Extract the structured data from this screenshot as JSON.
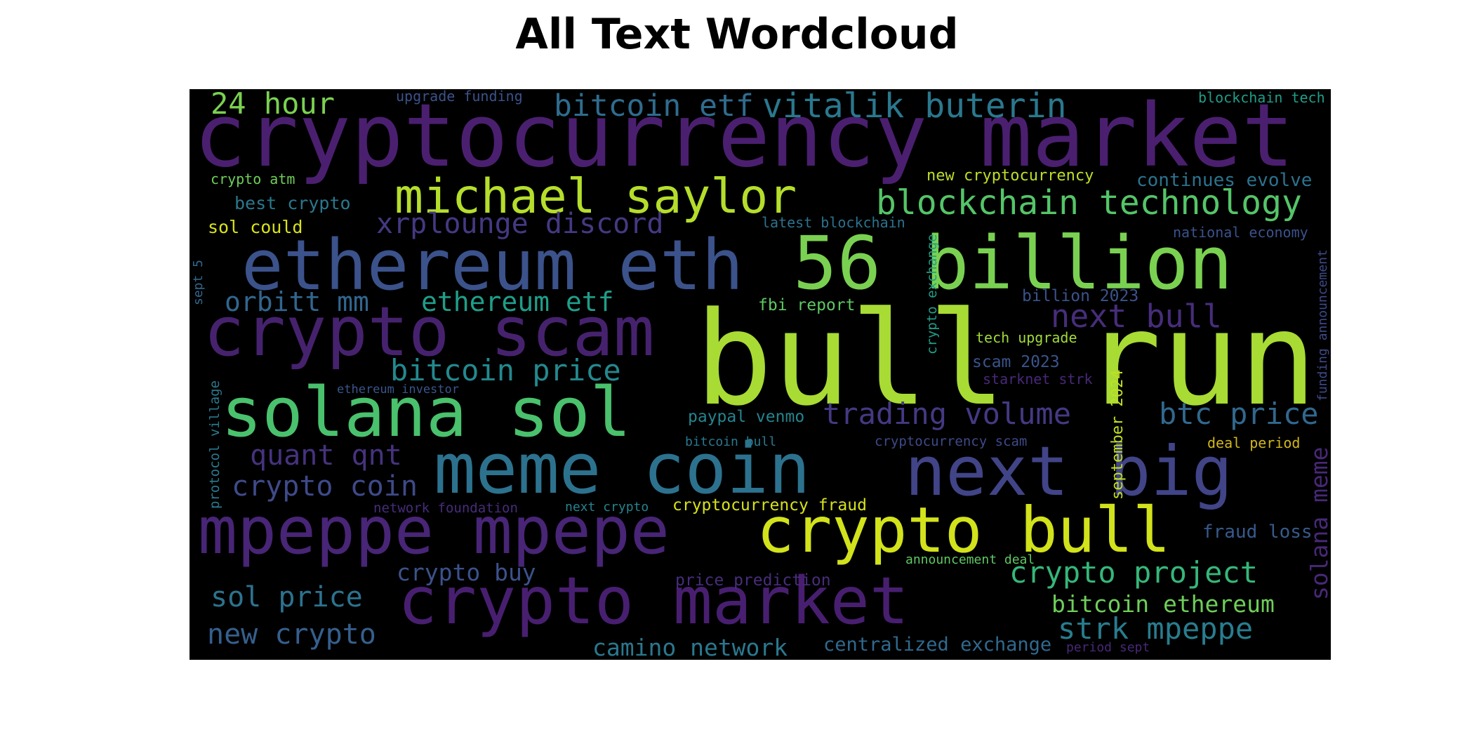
{
  "title": "All Text Wordcloud",
  "words": [
    {
      "text": "cryptocurrency market",
      "color": "#4b1f6f"
    },
    {
      "text": "bull run",
      "color": "#a8db34"
    },
    {
      "text": "56 billion",
      "color": "#7ad151"
    },
    {
      "text": "ethereum eth",
      "color": "#3b528b"
    },
    {
      "text": "crypto scam",
      "color": "#46226e"
    },
    {
      "text": "solana sol",
      "color": "#4ac16d"
    },
    {
      "text": "meme coin",
      "color": "#2c728e"
    },
    {
      "text": "next big",
      "color": "#414487"
    },
    {
      "text": "mpeppe mpepe",
      "color": "#482576"
    },
    {
      "text": "crypto bull",
      "color": "#d2e21b"
    },
    {
      "text": "crypto market",
      "color": "#481f70"
    },
    {
      "text": "michael saylor",
      "color": "#b5de2b"
    },
    {
      "text": "blockchain technology",
      "color": "#54c568"
    },
    {
      "text": "vitalik buterin",
      "color": "#2a788e"
    },
    {
      "text": "bitcoin etf",
      "color": "#2f6c8e"
    },
    {
      "text": "24 hour",
      "color": "#7ad151"
    },
    {
      "text": "xrplounge discord",
      "color": "#443983"
    },
    {
      "text": "orbitt mm",
      "color": "#31668e"
    },
    {
      "text": "ethereum etf",
      "color": "#1f9e89"
    },
    {
      "text": "next bull",
      "color": "#472d7b"
    },
    {
      "text": "bitcoin price",
      "color": "#23898e"
    },
    {
      "text": "trading volume",
      "color": "#443983"
    },
    {
      "text": "btc price",
      "color": "#31688e"
    },
    {
      "text": "quant qnt",
      "color": "#46327e"
    },
    {
      "text": "crypto coin",
      "color": "#3e4a89"
    },
    {
      "text": "crypto project",
      "color": "#35b779"
    },
    {
      "text": "crypto buy",
      "color": "#3b528b"
    },
    {
      "text": "sol price",
      "color": "#2c728e"
    },
    {
      "text": "new crypto",
      "color": "#355f8d"
    },
    {
      "text": "bitcoin ethereum",
      "color": "#6ece58"
    },
    {
      "text": "strk mpeppe",
      "color": "#287d8e"
    },
    {
      "text": "camino network",
      "color": "#2a788e"
    },
    {
      "text": "centralized exchange",
      "color": "#30698e"
    },
    {
      "text": "solana meme",
      "color": "#482878"
    },
    {
      "text": "fraud loss",
      "color": "#375a8c"
    },
    {
      "text": "best crypto",
      "color": "#2a788e"
    },
    {
      "text": "sol could",
      "color": "#d8e219"
    },
    {
      "text": "crypto atm",
      "color": "#6ece58"
    },
    {
      "text": "upgrade funding",
      "color": "#3b528b"
    },
    {
      "text": "blockchain tech",
      "color": "#1f9e89"
    },
    {
      "text": "new cryptocurrency",
      "color": "#bddf26"
    },
    {
      "text": "continues evolve",
      "color": "#2c728e"
    },
    {
      "text": "latest blockchain",
      "color": "#2c728e"
    },
    {
      "text": "national economy",
      "color": "#3b528b"
    },
    {
      "text": "fbi report",
      "color": "#5ec962"
    },
    {
      "text": "billion 2023",
      "color": "#3b528b"
    },
    {
      "text": "tech upgrade",
      "color": "#a0da39"
    },
    {
      "text": "scam 2023",
      "color": "#3a548c"
    },
    {
      "text": "starknet strk",
      "color": "#482878"
    },
    {
      "text": "ethereum investor",
      "color": "#39568c"
    },
    {
      "text": "paypal venmo",
      "color": "#25848e"
    },
    {
      "text": "bitcoin bull",
      "color": "#2a788e"
    },
    {
      "text": "cryptocurrency scam",
      "color": "#3e4a89"
    },
    {
      "text": "deal period",
      "color": "#d2b619"
    },
    {
      "text": "network foundation",
      "color": "#472c7a"
    },
    {
      "text": "next crypto",
      "color": "#26828e"
    },
    {
      "text": "cryptocurrency fraud",
      "color": "#d8e219"
    },
    {
      "text": "price prediction",
      "color": "#472d7b"
    },
    {
      "text": "announcement deal",
      "color": "#5ec962"
    },
    {
      "text": "period sept",
      "color": "#482878"
    },
    {
      "text": "crypto exchange",
      "color": "#1f9e89"
    },
    {
      "text": "september 2024",
      "color": "#c2df23"
    },
    {
      "text": "sept 5",
      "color": "#31688e"
    },
    {
      "text": "protocol village",
      "color": "#2a788e"
    },
    {
      "text": "funding announcement",
      "color": "#3e4a89"
    }
  ]
}
